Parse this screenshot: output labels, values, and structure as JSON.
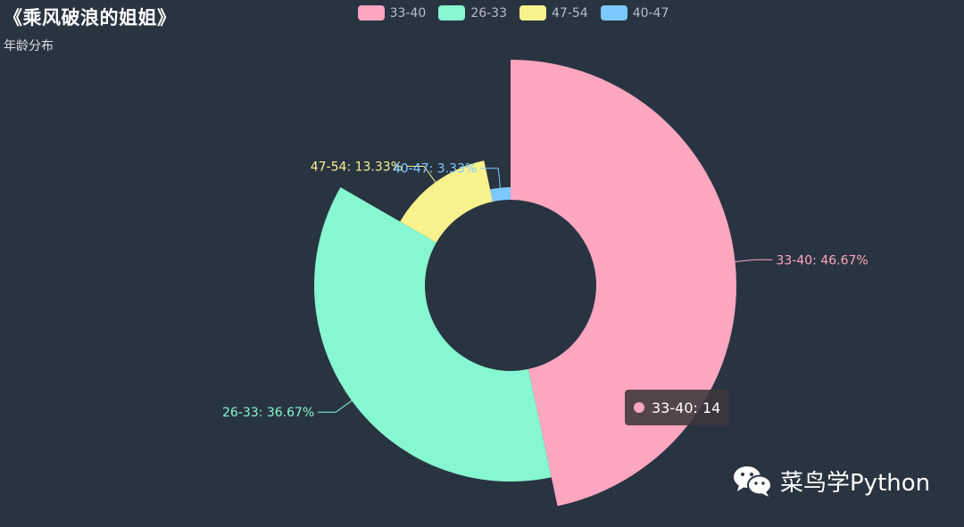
{
  "title": "《乘风破浪的姐姐》",
  "subtitle": "年龄分布",
  "watermark": {
    "text": "菜鸟学Python",
    "icon": "wechat-icon"
  },
  "tooltip": {
    "label": "33-40: 14",
    "color": "#ffa6c0"
  },
  "chart_data": {
    "type": "pie",
    "variant": "rose-donut",
    "title": "《乘风破浪的姐姐》",
    "subtitle": "年龄分布",
    "legend_placement": "top-center",
    "slices": [
      {
        "name": "33-40",
        "value": 14,
        "percent": "46.67%",
        "label": "33-40: 46.67%",
        "color": "#ffa6c0"
      },
      {
        "name": "26-33",
        "value": 11,
        "percent": "36.67%",
        "label": "26-33: 36.67%",
        "color": "#86f7d0"
      },
      {
        "name": "47-54",
        "value": 4,
        "percent": "13.33%",
        "label": "47-54: 13.33%",
        "color": "#f8f28e"
      },
      {
        "name": "40-47",
        "value": 1,
        "percent": "3.33%",
        "label": "40-47: 3.33%",
        "color": "#7dc9ff"
      }
    ]
  }
}
